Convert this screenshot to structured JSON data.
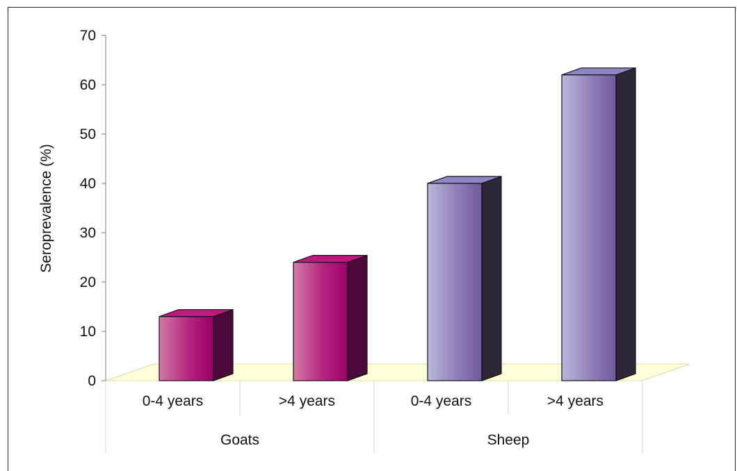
{
  "chart_data": {
    "type": "bar",
    "ylabel": "Seroprevalence (%)",
    "ylim": [
      0,
      70
    ],
    "yticks": [
      0,
      10,
      20,
      30,
      40,
      50,
      60,
      70
    ],
    "groups": [
      "Goats",
      "Sheep"
    ],
    "categories": [
      "0-4 years",
      ">4 years",
      "0-4 years",
      ">4 years"
    ],
    "bar_groups": [
      "Goats",
      "Goats",
      "Sheep",
      "Sheep"
    ],
    "values": [
      13,
      24,
      40,
      62
    ],
    "grid": false,
    "legend": "none",
    "colors": {
      "Goats": {
        "light": "#cc6699",
        "mid": "#a8006e",
        "dark": "#4a0a3a",
        "top": "#c2177e"
      },
      "Sheep": {
        "light": "#b8b4d6",
        "mid": "#7a66a8",
        "dark": "#2c2838",
        "top": "#8e86c4"
      },
      "floor": "#ffffd8"
    }
  }
}
